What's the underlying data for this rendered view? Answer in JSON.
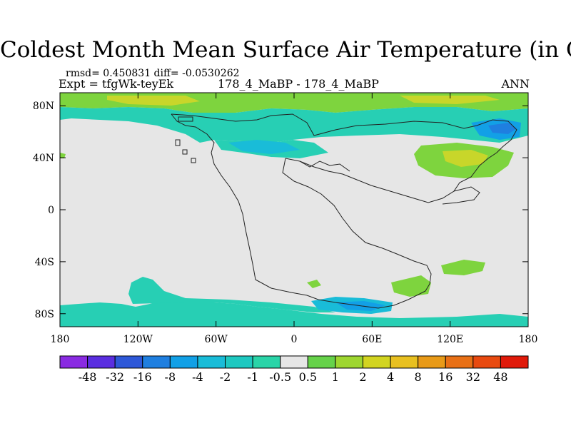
{
  "chart_data": {
    "type": "heatmap",
    "title": "Coldest Month Mean Surface Air Temperature (in C)",
    "stats_text": "rmsd= 0.450831 diff= -0.0530262",
    "experiment": "Expt = tfgWk-teyEk",
    "case_label": "178_4_MaBP - 178_4_MaBP",
    "season": "ANN",
    "x_ticks": [
      "180",
      "120W",
      "60W",
      "0",
      "60E",
      "120E",
      "180"
    ],
    "x_values": [
      -180,
      -120,
      -60,
      0,
      60,
      120,
      180
    ],
    "y_ticks": [
      "80N",
      "40N",
      "0",
      "40S",
      "80S"
    ],
    "y_values": [
      80,
      40,
      0,
      -40,
      -80
    ],
    "xlim": [
      -180,
      180
    ],
    "ylim": [
      -90,
      90
    ],
    "colorbar": {
      "labels": [
        "-48",
        "-32",
        "-16",
        "-8",
        "-4",
        "-2",
        "-1",
        "-0.5",
        "0.5",
        "1",
        "2",
        "4",
        "8",
        "16",
        "32",
        "48"
      ],
      "colors": [
        "#8a2be2",
        "#5a2ee0",
        "#2e58d8",
        "#1f7fe0",
        "#12a0e6",
        "#19bcd8",
        "#1ec8c0",
        "#2ad4a8",
        "#e6e6e6",
        "#66d24a",
        "#9ed630",
        "#d2d420",
        "#e8c020",
        "#e89a18",
        "#e87016",
        "#e84a10",
        "#e01a0a"
      ]
    },
    "regions": [
      {
        "name": "north-polar-band",
        "value": 1,
        "lon": [
          -180,
          180
        ],
        "lat": [
          72,
          88
        ]
      },
      {
        "name": "north-hemisphere-band",
        "value": -1,
        "lon": [
          -180,
          180
        ],
        "lat": [
          45,
          72
        ]
      },
      {
        "name": "east-asia-patch",
        "value": 1,
        "lon": [
          95,
          140
        ],
        "lat": [
          25,
          50
        ]
      },
      {
        "name": "northeast-cold-patch",
        "value": -4,
        "lon": [
          140,
          175
        ],
        "lat": [
          55,
          70
        ]
      },
      {
        "name": "south-pacific-band",
        "value": -1,
        "lon": [
          -180,
          180
        ],
        "lat": [
          -90,
          -72
        ]
      },
      {
        "name": "south-pacific-tongue",
        "value": -1,
        "lon": [
          -130,
          -60
        ],
        "lat": [
          -72,
          -52
        ]
      },
      {
        "name": "antarctic-cold-patch",
        "value": -4,
        "lon": [
          20,
          80
        ],
        "lat": [
          -80,
          -68
        ]
      },
      {
        "name": "southern-ocean-warm-patch",
        "value": 1,
        "lon": [
          80,
          110
        ],
        "lat": [
          -70,
          -55
        ]
      },
      {
        "name": "south-indian-patch",
        "value": 1,
        "lon": [
          115,
          140
        ],
        "lat": [
          -48,
          -38
        ]
      }
    ]
  }
}
